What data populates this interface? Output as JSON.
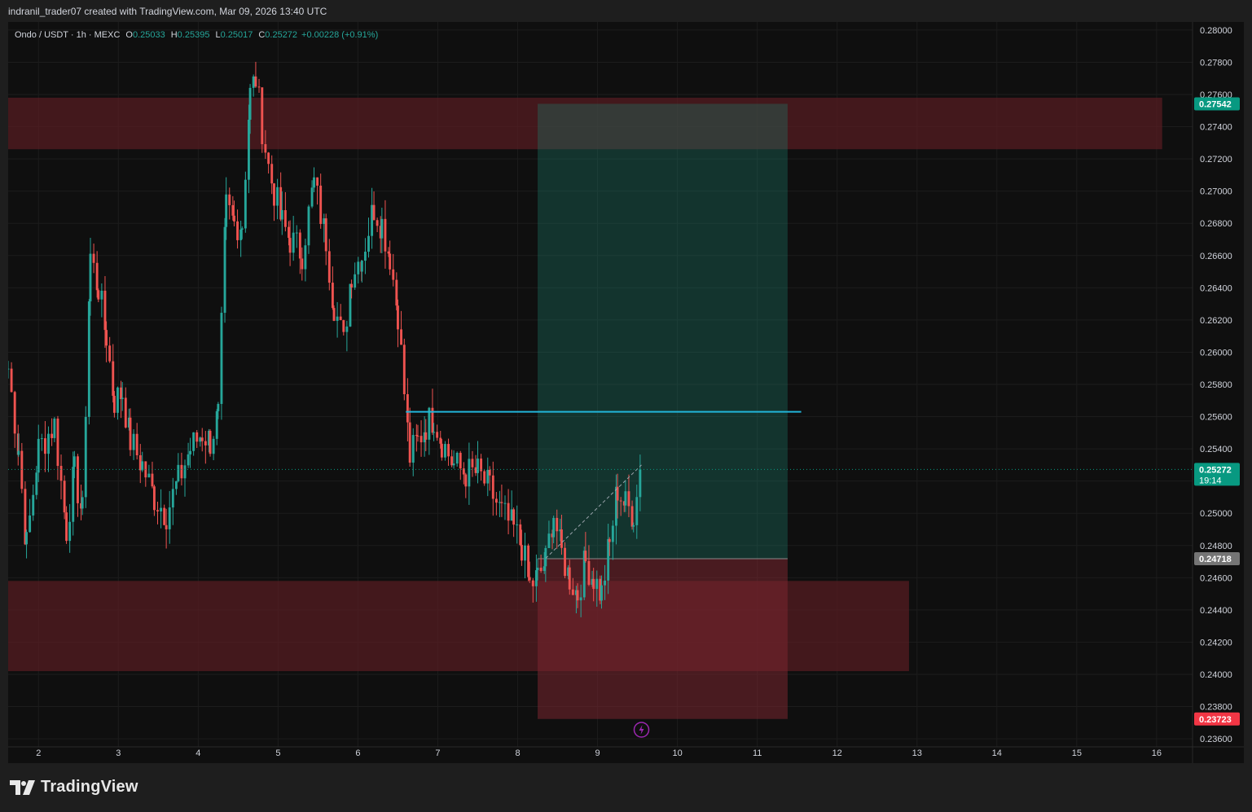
{
  "header": {
    "attribution": "indranil_trader07 created with TradingView.com, Mar 09, 2026 13:40 UTC"
  },
  "legend": {
    "symbol": "Ondo / USDT · 1h · MEXC",
    "o_label": "O",
    "o_value": "0.25033",
    "h_label": "H",
    "h_value": "0.25395",
    "l_label": "L",
    "l_value": "0.25017",
    "c_label": "C",
    "c_value": "0.25272",
    "change": "+0.00228 (+0.91%)"
  },
  "footer": {
    "brand": "TradingView"
  },
  "colors": {
    "up": "#26a69a",
    "down": "#ef5350",
    "background": "#0f0f0f",
    "zone": "#5a1c22",
    "target": "#1d7a6a",
    "stop": "#7a2630",
    "line": "#22b5d9",
    "last_price": "#089981",
    "stop_badge": "#f23645",
    "entry_badge": "#757575"
  },
  "chart_data": {
    "type": "candlestick",
    "title": "Ondo / USDT · 1h · MEXC",
    "ylim": [
      0.2355,
      0.2805
    ],
    "xlim": [
      1.62,
      16.45
    ],
    "y_ticks": [
      "0.28000",
      "0.27800",
      "0.27600",
      "0.27400",
      "0.27200",
      "0.27000",
      "0.26800",
      "0.26600",
      "0.26400",
      "0.26200",
      "0.26000",
      "0.25800",
      "0.25600",
      "0.25400",
      "0.25200",
      "0.25000",
      "0.24800",
      "0.24600",
      "0.24400",
      "0.24200",
      "0.24000",
      "0.23800",
      "0.23600"
    ],
    "x_ticks": [
      "2",
      "3",
      "4",
      "5",
      "6",
      "7",
      "8",
      "9",
      "10",
      "11",
      "12",
      "13",
      "14",
      "15",
      "16"
    ],
    "price_labels": [
      {
        "value": 0.27542,
        "text": "0.27542",
        "kind": "target"
      },
      {
        "value": 0.25272,
        "text": "0.25272",
        "sub": "19:14",
        "kind": "last"
      },
      {
        "value": 0.24718,
        "text": "0.24718",
        "kind": "entry"
      },
      {
        "value": 0.23723,
        "text": "0.23723",
        "kind": "stop"
      }
    ],
    "zones": [
      {
        "name": "resistance",
        "x0": 1.62,
        "x1": 16.07,
        "y0": 0.2726,
        "y1": 0.2758
      },
      {
        "name": "support",
        "x0": 1.62,
        "x1": 12.9,
        "y0": 0.2402,
        "y1": 0.2458
      }
    ],
    "position": {
      "x0": 8.25,
      "x1": 11.38,
      "entry": 0.24718,
      "target": 0.27542,
      "stop": 0.23723
    },
    "level_line": {
      "x0": 6.6,
      "x1": 11.55,
      "y": 0.2563
    },
    "anchors": [
      [
        1.62,
        0.259
      ],
      [
        1.75,
        0.254
      ],
      [
        1.85,
        0.248
      ],
      [
        2.0,
        0.254
      ],
      [
        2.2,
        0.2555
      ],
      [
        2.35,
        0.249
      ],
      [
        2.45,
        0.2525
      ],
      [
        2.55,
        0.25
      ],
      [
        2.65,
        0.266
      ],
      [
        2.75,
        0.264
      ],
      [
        2.85,
        0.261
      ],
      [
        2.95,
        0.257
      ],
      [
        3.05,
        0.2575
      ],
      [
        3.15,
        0.2545
      ],
      [
        3.3,
        0.253
      ],
      [
        3.45,
        0.251
      ],
      [
        3.6,
        0.25
      ],
      [
        3.75,
        0.252
      ],
      [
        3.9,
        0.254
      ],
      [
        4.05,
        0.255
      ],
      [
        4.15,
        0.2545
      ],
      [
        4.25,
        0.256
      ],
      [
        4.35,
        0.269
      ],
      [
        4.45,
        0.268
      ],
      [
        4.55,
        0.268
      ],
      [
        4.65,
        0.276
      ],
      [
        4.72,
        0.277
      ],
      [
        4.8,
        0.274
      ],
      [
        4.88,
        0.2715
      ],
      [
        4.95,
        0.27
      ],
      [
        5.05,
        0.268
      ],
      [
        5.15,
        0.267
      ],
      [
        5.3,
        0.2662
      ],
      [
        5.45,
        0.2705
      ],
      [
        5.6,
        0.267
      ],
      [
        5.7,
        0.263
      ],
      [
        5.82,
        0.2605
      ],
      [
        5.92,
        0.265
      ],
      [
        6.05,
        0.266
      ],
      [
        6.2,
        0.269
      ],
      [
        6.3,
        0.268
      ],
      [
        6.4,
        0.266
      ],
      [
        6.5,
        0.2625
      ],
      [
        6.58,
        0.2575
      ],
      [
        6.65,
        0.2535
      ],
      [
        6.75,
        0.2545
      ],
      [
        6.85,
        0.2555
      ],
      [
        6.95,
        0.256
      ],
      [
        7.05,
        0.2545
      ],
      [
        7.2,
        0.253
      ],
      [
        7.35,
        0.2525
      ],
      [
        7.5,
        0.2525
      ],
      [
        7.65,
        0.2515
      ],
      [
        7.8,
        0.25
      ],
      [
        7.95,
        0.249
      ],
      [
        8.05,
        0.248
      ],
      [
        8.15,
        0.2455
      ],
      [
        8.25,
        0.246
      ],
      [
        8.35,
        0.247
      ],
      [
        8.45,
        0.25
      ],
      [
        8.55,
        0.2475
      ],
      [
        8.65,
        0.246
      ],
      [
        8.75,
        0.245
      ],
      [
        8.85,
        0.247
      ],
      [
        8.95,
        0.246
      ],
      [
        9.05,
        0.245
      ],
      [
        9.15,
        0.248
      ],
      [
        9.25,
        0.2515
      ],
      [
        9.35,
        0.2505
      ],
      [
        9.45,
        0.25
      ],
      [
        9.55,
        0.2525
      ]
    ],
    "candles": []
  }
}
